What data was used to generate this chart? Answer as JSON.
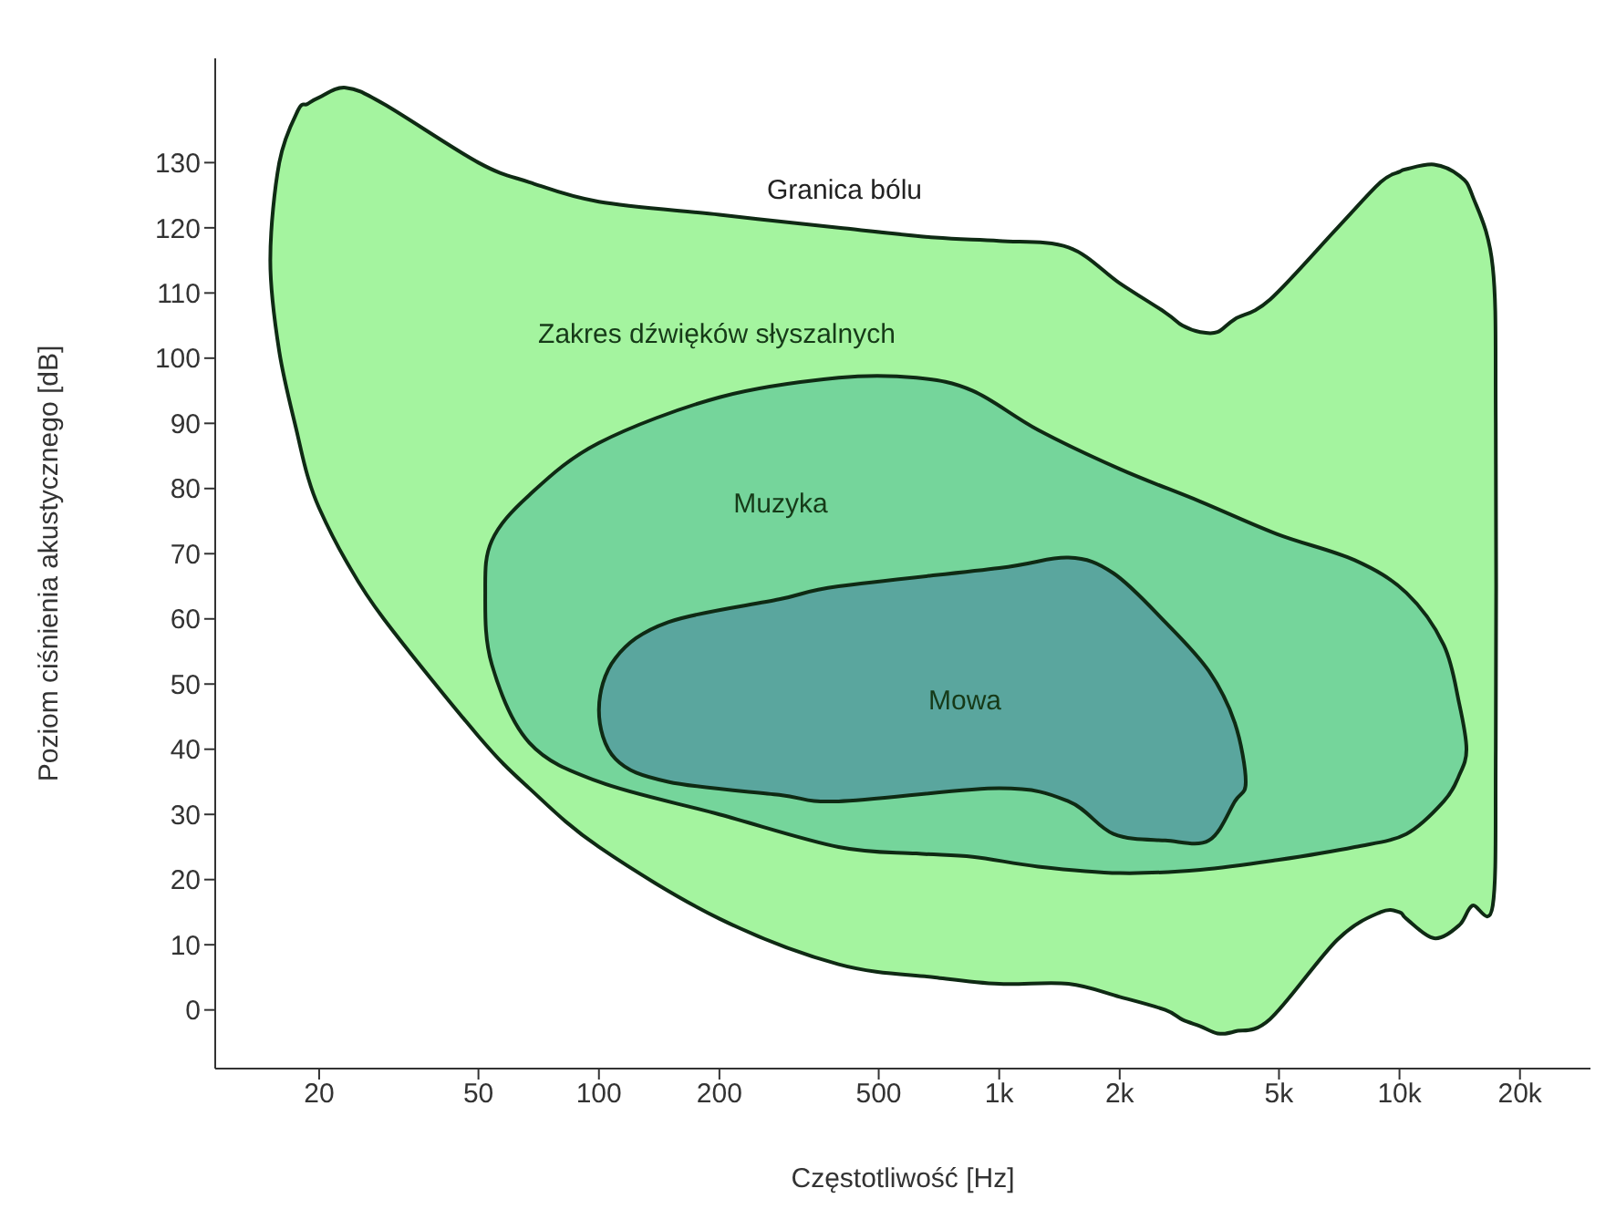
{
  "chart_data": {
    "type": "area",
    "xlabel": "Częstotliwość [Hz]",
    "ylabel": "Poziom ciśnienia akustycznego [dB]",
    "log": "x",
    "xlim": [
      11,
      30000
    ],
    "ylim": [
      -9,
      146
    ],
    "xticks": [
      20,
      50,
      100,
      200,
      500,
      {
        "value": 1000,
        "label": "1k"
      },
      {
        "value": 2000,
        "label": "2k"
      },
      {
        "value": 5000,
        "label": "5k"
      },
      {
        "value": 10000,
        "label": "10k"
      },
      {
        "value": 20000,
        "label": "20k"
      }
    ],
    "yticks": [
      0,
      10,
      20,
      30,
      40,
      50,
      60,
      70,
      80,
      90,
      100,
      110,
      120,
      130
    ],
    "series": [
      {
        "type": "area",
        "color": "#a4f49f",
        "x": [
          15.1,
          15.9,
          17.7,
          18.7,
          20,
          23.3,
          29,
          50,
          67,
          100,
          200,
          397,
          691,
          1000,
          1490,
          2000,
          2600,
          2870,
          3180,
          3510,
          3880,
          4750,
          7000,
          8970,
          10000,
          10400,
          12200,
          14100,
          15200,
          17100,
          17400,
          17400,
          17100,
          15200,
          14100,
          12200,
          10400,
          10000,
          8970,
          7000,
          4750,
          3880,
          3510,
          3180,
          2870,
          2600,
          2000,
          1490,
          1000,
          691,
          397,
          200,
          100,
          67,
          50,
          29,
          23.3,
          20,
          18.7,
          17.7,
          15.9
        ],
        "values": [
          115,
          130,
          138,
          139,
          140,
          141.5,
          139,
          130,
          127,
          124,
          122,
          120,
          118.5,
          118,
          117,
          111.5,
          107,
          105,
          104,
          104,
          106,
          109,
          120,
          127,
          128.6,
          129,
          129.7,
          128,
          125,
          114,
          90,
          40,
          16,
          16,
          13,
          11,
          14,
          15,
          15,
          10.8,
          -1.4,
          -3.3,
          -3.6,
          -2.5,
          -1.5,
          0,
          2,
          4,
          4,
          5,
          7,
          14,
          25,
          34,
          42,
          60,
          69,
          77,
          82,
          88,
          101
        ]
      },
      {
        "type": "area",
        "color": "#75d59b",
        "x": [
          52,
          54,
          67,
          100,
          200,
          397,
          621,
          859,
          1250,
          2000,
          3180,
          4950,
          7730,
          10400,
          12900,
          14100,
          14700,
          14100,
          12900,
          10400,
          7730,
          4950,
          3180,
          2000,
          1250,
          859,
          621,
          397,
          200,
          100,
          67,
          54
        ],
        "values": [
          64,
          72,
          79,
          87,
          94,
          97,
          97,
          95,
          89,
          83,
          78,
          73,
          69,
          64,
          56,
          47,
          40,
          36,
          32,
          27,
          25,
          23,
          21.5,
          21,
          22,
          23.5,
          24,
          25,
          30,
          35,
          41,
          53
        ]
      },
      {
        "type": "area",
        "color": "#5aa69e",
        "x": [
          100,
          110,
          149,
          282,
          397,
          1000,
          1490,
          1930,
          2600,
          3340,
          3880,
          4130,
          3880,
          3340,
          2600,
          1930,
          1490,
          1000,
          397,
          282,
          149,
          110
        ],
        "values": [
          46,
          54,
          59.5,
          63,
          65,
          67.8,
          69.4,
          67,
          59.5,
          52,
          44,
          35,
          32,
          26,
          26,
          27,
          32,
          34,
          32,
          33,
          35,
          38.5
        ]
      }
    ],
    "annotations": [
      "Granica bólu",
      "Zakres dźwięków słyszalnych",
      "Muzyka",
      "Mowa"
    ]
  }
}
